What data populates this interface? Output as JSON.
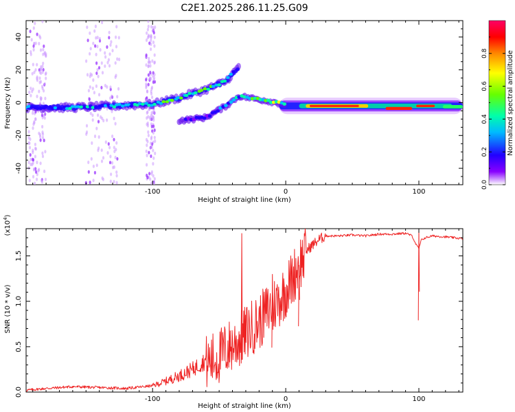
{
  "title": "C2E1.2025.286.11.25.G09",
  "chart_data": [
    {
      "type": "heatmap",
      "name": "spectrogram",
      "xlabel": "Height of straight line (km)",
      "ylabel": "Frequency (Hz)",
      "xlim": [
        -195,
        133
      ],
      "ylim": [
        -50,
        50
      ],
      "x_ticks": [
        -100,
        0,
        100
      ],
      "y_ticks": [
        -40,
        -20,
        0,
        20,
        40
      ],
      "colorbar": {
        "label": "Normalized spectral amplitude",
        "range": [
          0,
          1
        ],
        "ticks": [
          "0.0",
          "0.2",
          "0.4",
          "0.6",
          "0.8"
        ],
        "tick_values": [
          0.0,
          0.2,
          0.4,
          0.6,
          0.8
        ],
        "colors": [
          "#ffffff",
          "#8800ff",
          "#2200ff",
          "#00bbff",
          "#00ffaa",
          "#66ff00",
          "#ffff00",
          "#ff8800",
          "#ff0000",
          "#ff0066"
        ]
      },
      "main_track": [
        {
          "x": -195,
          "f": -3,
          "amp": 0.35
        },
        {
          "x": -160,
          "f": -3,
          "amp": 0.45
        },
        {
          "x": -130,
          "f": -2,
          "amp": 0.45
        },
        {
          "x": -100,
          "f": -1,
          "amp": 0.5
        },
        {
          "x": -80,
          "f": 3,
          "amp": 0.6
        },
        {
          "x": -60,
          "f": 8,
          "amp": 0.6
        },
        {
          "x": -45,
          "f": 13,
          "amp": 0.5
        },
        {
          "x": -35,
          "f": 22,
          "amp": 0.3
        }
      ],
      "lower_track": [
        {
          "x": -80,
          "f": -11,
          "amp": 0.2
        },
        {
          "x": -60,
          "f": -9,
          "amp": 0.3
        },
        {
          "x": -45,
          "f": -2,
          "amp": 0.4
        },
        {
          "x": -35,
          "f": 4,
          "amp": 0.5
        },
        {
          "x": -20,
          "f": 2,
          "amp": 0.6
        },
        {
          "x": 0,
          "f": -1,
          "amp": 0.7
        },
        {
          "x": 40,
          "f": -1,
          "amp": 0.85
        },
        {
          "x": 80,
          "f": -2,
          "amp": 0.85
        },
        {
          "x": 100,
          "f": -2,
          "amp": 0.75
        },
        {
          "x": 133,
          "f": -3,
          "amp": 0.5
        }
      ]
    },
    {
      "type": "line",
      "name": "snr",
      "xlabel": "Height of straight line (km)",
      "ylabel": "SNR (10 * v/v)",
      "y_multiplier": "(x10",
      "y_multiplier_exp": "4",
      "y_multiplier_close": ")",
      "xlim": [
        -195,
        133
      ],
      "ylim": [
        0,
        1.8
      ],
      "x_ticks": [
        -100,
        0,
        100
      ],
      "y_ticks": [
        "0.0",
        "0.5",
        "1.0",
        "1.5"
      ],
      "y_tick_values": [
        0.0,
        0.5,
        1.0,
        1.5
      ],
      "color": "#ee2222",
      "series": [
        {
          "name": "SNR",
          "x": [
            -195,
            -180,
            -160,
            -140,
            -120,
            -100,
            -90,
            -80,
            -70,
            -60,
            -50,
            -45,
            -40,
            -35,
            -30,
            -25,
            -20,
            -15,
            -10,
            -5,
            0,
            5,
            10,
            15,
            20,
            25,
            30,
            40,
            50,
            60,
            70,
            80,
            90,
            95,
            98,
            100,
            102,
            105,
            110,
            120,
            133
          ],
          "y": [
            0.02,
            0.04,
            0.06,
            0.05,
            0.04,
            0.07,
            0.12,
            0.18,
            0.25,
            0.35,
            0.42,
            0.5,
            0.55,
            0.6,
            0.68,
            0.75,
            0.8,
            0.9,
            0.98,
            1.05,
            1.15,
            1.28,
            1.45,
            1.55,
            1.62,
            1.68,
            1.72,
            1.72,
            1.73,
            1.72,
            1.74,
            1.74,
            1.75,
            1.72,
            1.62,
            1.58,
            1.68,
            1.7,
            1.72,
            1.71,
            1.69
          ]
        }
      ],
      "spikes": [
        {
          "x": -33,
          "y": 1.75
        },
        {
          "x": -10,
          "y": 1.3
        },
        {
          "x": 10,
          "y": 1.4
        },
        {
          "x": 100,
          "y": 1.8
        }
      ]
    }
  ]
}
